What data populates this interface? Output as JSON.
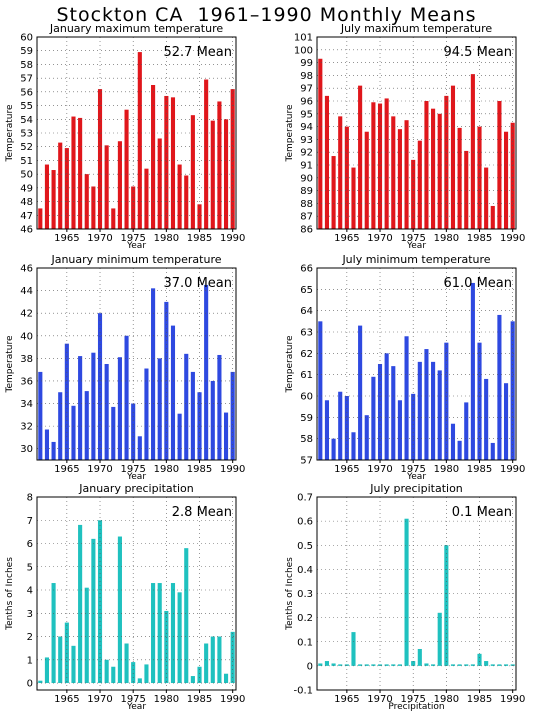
{
  "page": {
    "title": "Stockton CA  1961–1990 Monthly Means"
  },
  "colors": {
    "temp_max": "#e0161b",
    "temp_min": "#2e49e0",
    "precip": "#1fc1bf",
    "grid": "#555555"
  },
  "chart_data": [
    {
      "type": "bar",
      "title": "January maximum temperature",
      "ylabel": "Temperature",
      "xlabel": "Year",
      "mean_label": "52.7 Mean",
      "color": "#e0161b",
      "ylim": [
        46,
        60
      ],
      "yticks": [
        46,
        47,
        48,
        49,
        50,
        51,
        52,
        53,
        54,
        55,
        56,
        57,
        58,
        59,
        60
      ],
      "xticks": [
        1965,
        1970,
        1975,
        1980,
        1985,
        1990
      ],
      "grid": true,
      "x": [
        1961,
        1962,
        1963,
        1964,
        1965,
        1966,
        1967,
        1968,
        1969,
        1970,
        1971,
        1972,
        1973,
        1974,
        1975,
        1976,
        1977,
        1978,
        1979,
        1980,
        1981,
        1982,
        1983,
        1984,
        1985,
        1986,
        1987,
        1988,
        1989,
        1990
      ],
      "values": [
        47.5,
        50.7,
        50.3,
        52.3,
        51.9,
        54.2,
        54.1,
        50.0,
        49.1,
        56.2,
        52.1,
        47.5,
        52.4,
        54.7,
        49.1,
        58.9,
        50.4,
        56.5,
        52.6,
        55.7,
        55.6,
        50.7,
        49.9,
        54.3,
        47.8,
        56.9,
        53.9,
        55.3,
        54.0,
        56.2
      ]
    },
    {
      "type": "bar",
      "title": "July maximum temperature",
      "ylabel": "Temperature",
      "xlabel": "Year",
      "mean_label": "94.5 Mean",
      "color": "#e0161b",
      "ylim": [
        86,
        101
      ],
      "yticks": [
        86,
        87,
        88,
        89,
        90,
        91,
        92,
        93,
        94,
        95,
        96,
        97,
        98,
        99,
        100,
        101
      ],
      "xticks": [
        1965,
        1970,
        1975,
        1980,
        1985,
        1990
      ],
      "grid": true,
      "x": [
        1961,
        1962,
        1963,
        1964,
        1965,
        1966,
        1967,
        1968,
        1969,
        1970,
        1971,
        1972,
        1973,
        1974,
        1975,
        1976,
        1977,
        1978,
        1979,
        1980,
        1981,
        1982,
        1983,
        1984,
        1985,
        1986,
        1987,
        1988,
        1989,
        1990
      ],
      "values": [
        99.3,
        96.4,
        91.7,
        94.8,
        94.0,
        90.8,
        97.2,
        93.6,
        95.9,
        95.8,
        96.2,
        94.8,
        93.8,
        94.5,
        91.4,
        92.9,
        96.0,
        95.4,
        95.0,
        96.4,
        97.2,
        93.9,
        92.1,
        98.1,
        94.0,
        90.8,
        87.8,
        96.0,
        93.6,
        94.3
      ]
    },
    {
      "type": "bar",
      "title": "January minimum temperature",
      "ylabel": "Temperature",
      "xlabel": "Year",
      "mean_label": "37.0 Mean",
      "color": "#2e49e0",
      "ylim": [
        29,
        46
      ],
      "yticks": [
        30,
        32,
        34,
        36,
        38,
        40,
        42,
        44,
        46
      ],
      "xticks": [
        1965,
        1970,
        1975,
        1980,
        1985,
        1990
      ],
      "grid": true,
      "x": [
        1961,
        1962,
        1963,
        1964,
        1965,
        1966,
        1967,
        1968,
        1969,
        1970,
        1971,
        1972,
        1973,
        1974,
        1975,
        1976,
        1977,
        1978,
        1979,
        1980,
        1981,
        1982,
        1983,
        1984,
        1985,
        1986,
        1987,
        1988,
        1989,
        1990
      ],
      "values": [
        36.8,
        31.7,
        30.6,
        35.0,
        39.3,
        33.8,
        38.2,
        35.1,
        38.5,
        42.0,
        37.5,
        33.7,
        38.1,
        40.0,
        34.0,
        31.1,
        37.1,
        44.2,
        38.0,
        43.0,
        40.9,
        33.1,
        38.4,
        36.8,
        35.0,
        44.5,
        36.0,
        38.3,
        33.2,
        36.8
      ]
    },
    {
      "type": "bar",
      "title": "July minimum temperature",
      "ylabel": "Temperature",
      "xlabel": "Year",
      "mean_label": "61.0 Mean",
      "color": "#2e49e0",
      "ylim": [
        57,
        66
      ],
      "yticks": [
        57,
        58,
        59,
        60,
        61,
        62,
        63,
        64,
        65,
        66
      ],
      "xticks": [
        1965,
        1970,
        1975,
        1980,
        1985,
        1990
      ],
      "grid": true,
      "x": [
        1961,
        1962,
        1963,
        1964,
        1965,
        1966,
        1967,
        1968,
        1969,
        1970,
        1971,
        1972,
        1973,
        1974,
        1975,
        1976,
        1977,
        1978,
        1979,
        1980,
        1981,
        1982,
        1983,
        1984,
        1985,
        1986,
        1987,
        1988,
        1989,
        1990
      ],
      "values": [
        63.5,
        59.8,
        58.0,
        60.2,
        60.0,
        58.3,
        63.3,
        59.1,
        60.9,
        61.5,
        62.0,
        61.4,
        59.8,
        62.8,
        60.1,
        61.6,
        62.2,
        61.6,
        61.2,
        62.5,
        58.7,
        57.9,
        59.7,
        65.3,
        62.5,
        60.8,
        57.8,
        63.8,
        60.6,
        63.5
      ]
    },
    {
      "type": "bar",
      "title": "January precipitation",
      "ylabel": "Tenths of Inches",
      "xlabel": "Year",
      "mean_label": "2.8 Mean",
      "color": "#1fc1bf",
      "ylim": [
        -0.3,
        8
      ],
      "yticks": [
        0,
        1,
        2,
        3,
        4,
        5,
        6,
        7,
        8
      ],
      "xticks": [
        1965,
        1970,
        1975,
        1980,
        1985,
        1990
      ],
      "grid": true,
      "x": [
        1961,
        1962,
        1963,
        1964,
        1965,
        1966,
        1967,
        1968,
        1969,
        1970,
        1971,
        1972,
        1973,
        1974,
        1975,
        1976,
        1977,
        1978,
        1979,
        1980,
        1981,
        1982,
        1983,
        1984,
        1985,
        1986,
        1987,
        1988,
        1989,
        1990
      ],
      "values": [
        0.1,
        1.1,
        4.3,
        2.0,
        2.6,
        1.6,
        6.8,
        4.1,
        6.2,
        7.0,
        1.0,
        0.7,
        6.3,
        1.7,
        0.9,
        0.2,
        0.8,
        4.3,
        4.3,
        3.1,
        4.3,
        3.9,
        5.8,
        0.3,
        0.7,
        1.7,
        2.0,
        2.0,
        0.4,
        2.2
      ]
    },
    {
      "type": "bar",
      "title": "July precipitation",
      "ylabel": "Tenths of Inches",
      "xlabel": "Precipitation",
      "mean_label": "0.1 Mean",
      "color": "#1fc1bf",
      "ylim": [
        -0.1,
        0.7
      ],
      "yticks": [
        -0.1,
        0,
        0.1,
        0.2,
        0.3,
        0.4,
        0.5,
        0.6,
        0.7
      ],
      "xticks": [
        1965,
        1970,
        1975,
        1980,
        1985,
        1990
      ],
      "grid": true,
      "x": [
        1961,
        1962,
        1963,
        1964,
        1965,
        1966,
        1967,
        1968,
        1969,
        1970,
        1971,
        1972,
        1973,
        1974,
        1975,
        1976,
        1977,
        1978,
        1979,
        1980,
        1981,
        1982,
        1983,
        1984,
        1985,
        1986,
        1987,
        1988,
        1989,
        1990
      ],
      "values": [
        0.01,
        0.02,
        0.01,
        0.0,
        0.0,
        0.14,
        0.0,
        0.0,
        0.0,
        0.0,
        0.0,
        0.0,
        0.0,
        0.61,
        0.02,
        0.07,
        0.01,
        0.0,
        0.22,
        0.5,
        0.0,
        0.0,
        0.0,
        0.0,
        0.05,
        0.02,
        0.0,
        0.0,
        0.0,
        0.0
      ]
    }
  ]
}
